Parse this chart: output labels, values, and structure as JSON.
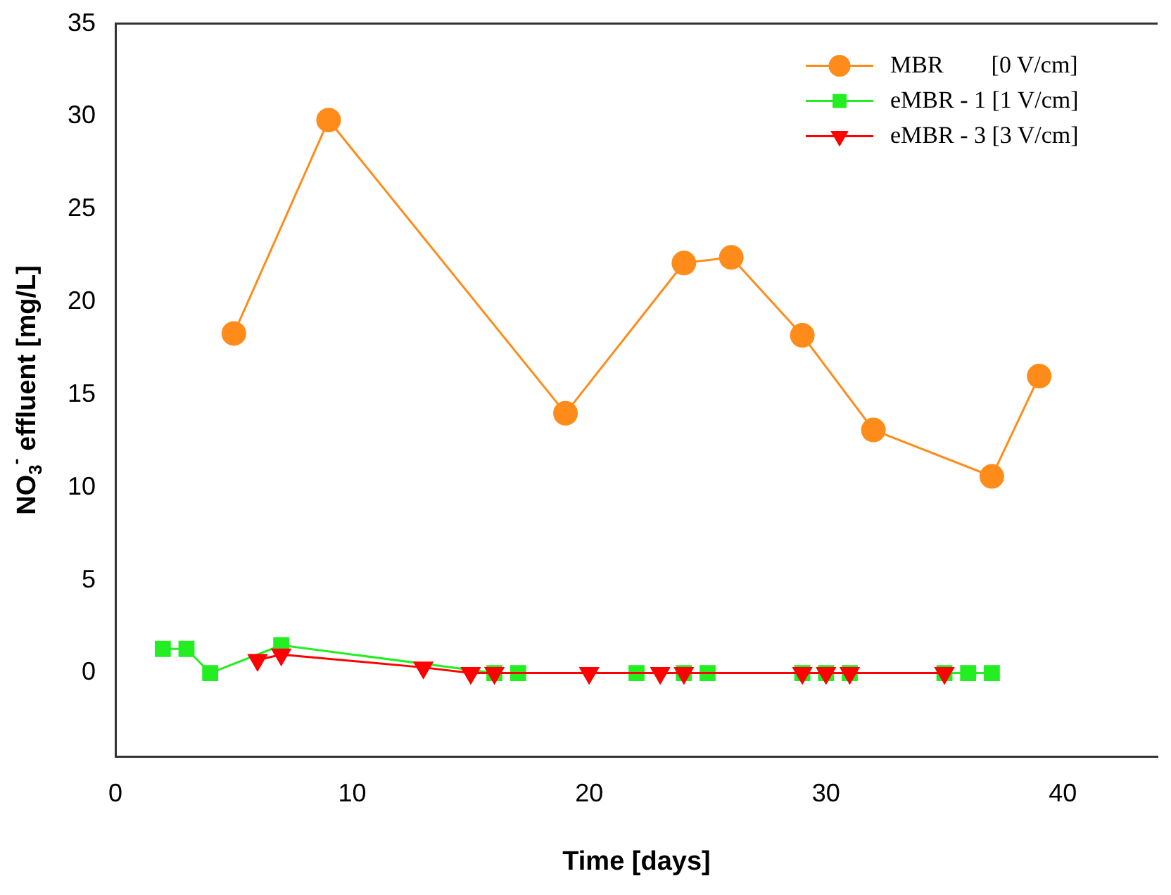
{
  "chart_data": {
    "type": "line",
    "xlabel": "Time [days]",
    "ylabel": "NO$_{3}$$^{-}$ effluent [mg/L]",
    "xlim": [
      0,
      44
    ],
    "xticks": [
      0,
      10,
      20,
      30,
      40
    ],
    "ylim": [
      -4.5,
      35
    ],
    "yticks": [
      0,
      5,
      10,
      15,
      20,
      25,
      30,
      35
    ],
    "grid": false,
    "legend": "top right",
    "line_style": "solid",
    "series": [
      {
        "name": "MBR        [0 V/cm]",
        "color": "#ff8c1a",
        "marker": "circle",
        "x": [
          5,
          9,
          19,
          24,
          26,
          29,
          32,
          37,
          39
        ],
        "values": [
          18.3,
          29.8,
          14.0,
          22.1,
          22.4,
          18.2,
          13.1,
          10.6,
          16.0
        ]
      },
      {
        "name": "eMBR - 1 [1 V/cm]",
        "color": "#22ee22",
        "marker": "square",
        "x": [
          2,
          3,
          4,
          7,
          16,
          17,
          22,
          24,
          25,
          29,
          30,
          31,
          35,
          36,
          37
        ],
        "values": [
          1.3,
          1.3,
          0,
          1.5,
          0,
          0,
          0,
          0,
          0,
          0,
          0,
          0,
          0,
          0,
          0
        ]
      },
      {
        "name": "eMBR - 3 [3 V/cm]",
        "color": "#ff0000",
        "marker": "triangle",
        "x": [
          6,
          7,
          13,
          15,
          16,
          20,
          23,
          24,
          29,
          30,
          31,
          35
        ],
        "values": [
          0.7,
          1.0,
          0.3,
          0,
          0,
          0,
          0,
          0,
          0,
          0,
          0,
          0
        ]
      }
    ]
  }
}
